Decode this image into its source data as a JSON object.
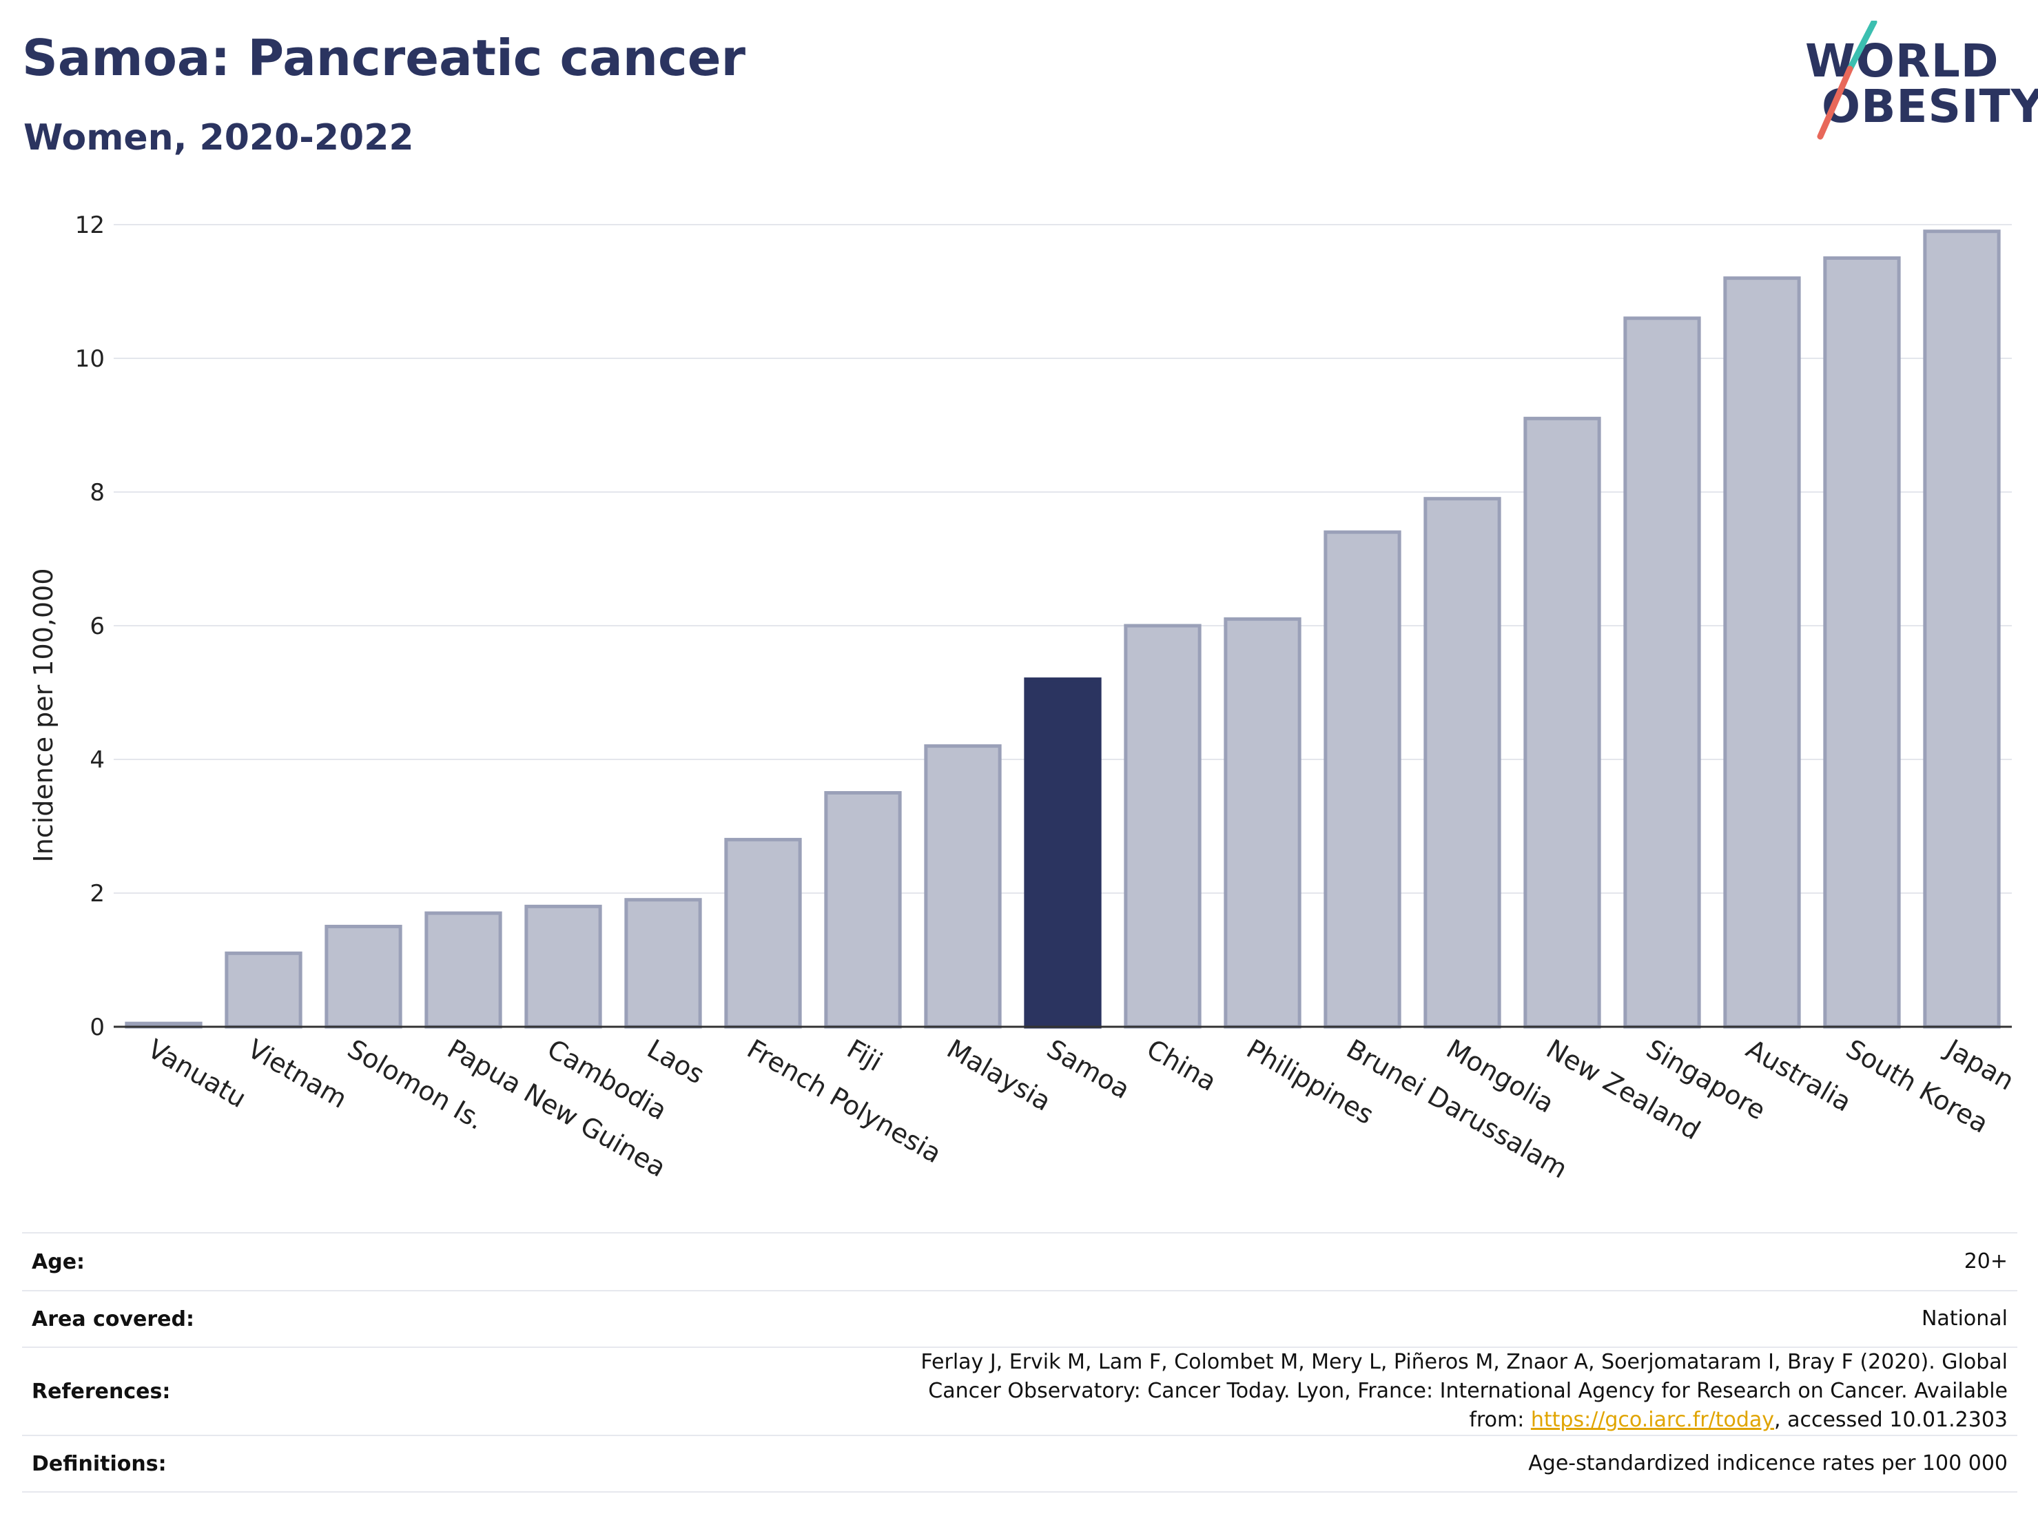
{
  "header": {
    "title": "Samoa: Pancreatic cancer",
    "subtitle": "Women, 2020-2022"
  },
  "logo": {
    "line1": "WORLD",
    "line2": "OBESITY",
    "colors": {
      "text": "#2b3460",
      "slash_top": "#3bbfb0",
      "slash_bottom": "#e8685a"
    }
  },
  "chart_data": {
    "type": "bar",
    "ylabel": "Incidence per 100,000",
    "xlabel": "",
    "ylim": [
      0,
      12
    ],
    "yticks": [
      0,
      2,
      4,
      6,
      8,
      10,
      12
    ],
    "grid": true,
    "categories": [
      "Vanuatu",
      "Vietnam",
      "Solomon Is.",
      "Papua New Guinea",
      "Cambodia",
      "Laos",
      "French Polynesia",
      "Fiji",
      "Malaysia",
      "Samoa",
      "China",
      "Philippines",
      "Brunei Darussalam",
      "Mongolia",
      "New Zealand",
      "Singapore",
      "Australia",
      "South Korea",
      "Japan"
    ],
    "values": [
      0.05,
      1.1,
      1.5,
      1.7,
      1.8,
      1.9,
      2.8,
      3.5,
      4.2,
      5.2,
      6.0,
      6.1,
      7.4,
      7.9,
      9.1,
      10.6,
      11.2,
      11.5,
      11.9
    ],
    "highlight": "Samoa",
    "colors": {
      "bar": "#bcc0cf",
      "bar_border": "#9aa0b8",
      "highlight": "#2b3460"
    }
  },
  "info": [
    {
      "key": "Age:",
      "value": "20+"
    },
    {
      "key": "Area covered:",
      "value": "National"
    },
    {
      "key": "References:",
      "value_pre": "Ferlay J, Ervik M, Lam F, Colombet M, Mery L, Piñeros M, Znaor A, Soerjomataram I, Bray F (2020). Global Cancer Observatory: Cancer Today. Lyon, France: International Agency for Research on Cancer. Available from: ",
      "link": "https://gco.iarc.fr/today",
      "value_post": ", accessed 10.01.2303"
    },
    {
      "key": "Definitions:",
      "value": "Age-standardized indicence rates per 100 000"
    }
  ]
}
